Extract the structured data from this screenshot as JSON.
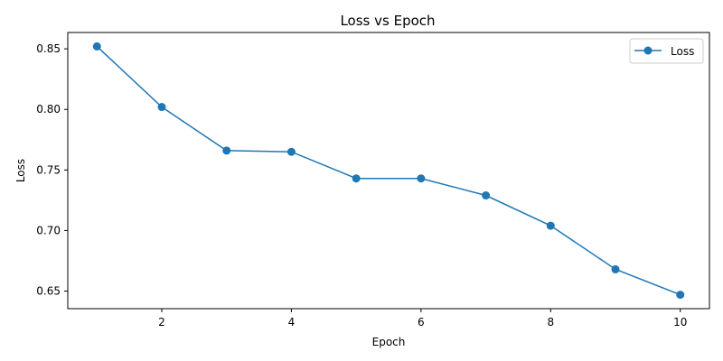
{
  "chart_data": {
    "type": "line",
    "title": "Loss vs Epoch",
    "xlabel": "Epoch",
    "ylabel": "Loss",
    "x": [
      1,
      2,
      3,
      4,
      5,
      6,
      7,
      8,
      9,
      10
    ],
    "series": [
      {
        "name": "Loss",
        "color": "#1f77b4",
        "marker": "circle",
        "values": [
          0.852,
          0.802,
          0.766,
          0.765,
          0.743,
          0.743,
          0.729,
          0.704,
          0.668,
          0.647
        ]
      }
    ],
    "xlim": [
      0.55,
      10.45
    ],
    "ylim": [
      0.6355,
      0.8635
    ],
    "xticks": [
      2,
      4,
      6,
      8,
      10
    ],
    "xtick_labels": [
      "2",
      "4",
      "6",
      "8",
      "10"
    ],
    "yticks": [
      0.65,
      0.7,
      0.75,
      0.8,
      0.85
    ],
    "ytick_labels": [
      "0.65",
      "0.70",
      "0.75",
      "0.80",
      "0.85"
    ],
    "grid": false,
    "legend_position": "top-right"
  }
}
